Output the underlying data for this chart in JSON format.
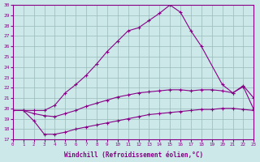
{
  "xlabel": "Windchill (Refroidissement éolien,°C)",
  "xlim": [
    0,
    23
  ],
  "ylim": [
    17,
    30
  ],
  "xticks": [
    0,
    1,
    2,
    3,
    4,
    5,
    6,
    7,
    8,
    9,
    10,
    11,
    12,
    13,
    14,
    15,
    16,
    17,
    18,
    19,
    20,
    21,
    22,
    23
  ],
  "yticks": [
    17,
    18,
    19,
    20,
    21,
    22,
    23,
    24,
    25,
    26,
    27,
    28,
    29,
    30
  ],
  "bg_color": "#cce8e8",
  "line_color": "#880088",
  "grid_color": "#99bbbb",
  "line1_x": [
    0,
    1,
    2,
    3,
    4,
    5,
    6,
    7,
    8,
    9,
    10,
    11,
    12,
    13,
    14,
    15,
    16,
    17,
    18,
    19,
    20,
    21,
    22,
    23
  ],
  "line1_y": [
    19.8,
    19.8,
    18.8,
    17.5,
    17.5,
    17.7,
    18.0,
    18.2,
    18.4,
    18.6,
    18.8,
    19.0,
    19.2,
    19.4,
    19.5,
    19.6,
    19.7,
    19.8,
    19.9,
    19.9,
    20.0,
    20.0,
    19.9,
    19.8
  ],
  "line2_x": [
    0,
    1,
    2,
    3,
    4,
    5,
    6,
    7,
    8,
    9,
    10,
    11,
    12,
    13,
    14,
    15,
    16,
    17,
    18,
    19,
    20,
    21,
    22,
    23
  ],
  "line2_y": [
    19.8,
    19.8,
    19.5,
    19.3,
    19.2,
    19.5,
    19.8,
    20.2,
    20.5,
    20.8,
    21.1,
    21.3,
    21.5,
    21.6,
    21.7,
    21.8,
    21.8,
    21.7,
    21.8,
    21.8,
    21.7,
    21.5,
    22.1,
    19.9
  ],
  "line3_x": [
    0,
    2,
    3,
    4,
    5,
    6,
    7,
    8,
    9,
    10,
    11,
    12,
    13,
    14,
    15,
    16,
    17,
    18,
    20,
    21,
    22,
    23
  ],
  "line3_y": [
    19.8,
    19.8,
    19.8,
    20.3,
    21.5,
    22.3,
    23.2,
    24.3,
    25.5,
    26.5,
    27.5,
    27.8,
    28.5,
    29.2,
    30.0,
    29.3,
    27.5,
    26.0,
    22.3,
    21.5,
    22.2,
    21.0
  ]
}
